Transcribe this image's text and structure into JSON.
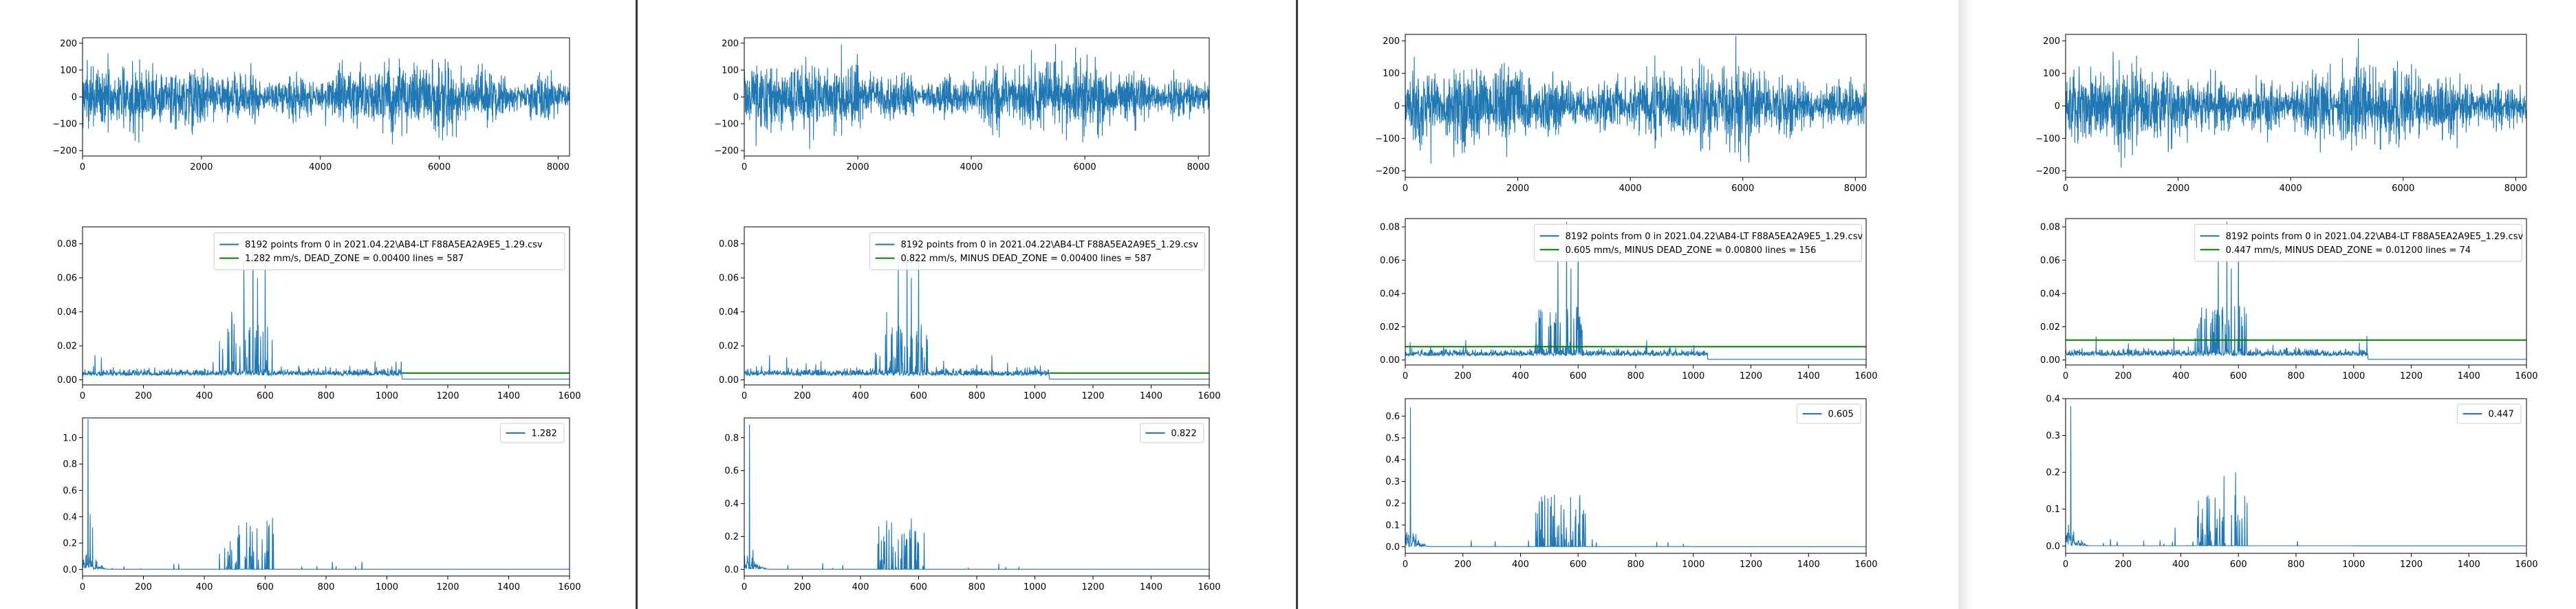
{
  "chart_data": [
    {
      "id": "window-1",
      "legend_time": "8192 points from 0  in  2021.04.22\\AB4-LT F88A5EA2A9E5_1.29.csv",
      "legend_dead_zone": "1.282 mm/s,  DEAD_ZONE = 0.00400     lines = 587",
      "legend_spectrum": "1.282",
      "charts": [
        {
          "type": "line",
          "role": "waveform",
          "n_points": 8192,
          "xlim": [
            0,
            8192
          ],
          "ylim": [
            -220,
            220
          ],
          "xticks": [
            0,
            2000,
            4000,
            6000,
            8000
          ],
          "yticks": [
            -200,
            -100,
            0,
            100,
            200
          ],
          "amplitude": 160,
          "peak": 215
        },
        {
          "type": "line",
          "role": "spectrum-deadzone",
          "n_points": 1600,
          "xlim": [
            0,
            1600
          ],
          "ylim": [
            -0.003,
            0.09
          ],
          "xticks": [
            0,
            200,
            400,
            600,
            800,
            1000,
            1200,
            1400,
            1600
          ],
          "yticks": [
            0.0,
            0.02,
            0.04,
            0.06,
            0.08
          ],
          "dead_zone": 0.004,
          "dead_zone_from": 1050,
          "peaks": [
            {
              "x": 560,
              "y": 0.085
            },
            {
              "x": 600,
              "y": 0.08
            },
            {
              "x": 530,
              "y": 0.07
            },
            {
              "x": 575,
              "y": 0.06
            },
            {
              "x": 490,
              "y": 0.04
            }
          ]
        },
        {
          "type": "line",
          "role": "spectrum-filtered",
          "n_points": 1600,
          "xlim": [
            0,
            1600
          ],
          "ylim": [
            -0.05,
            1.15
          ],
          "xticks": [
            0,
            200,
            400,
            600,
            800,
            1000,
            1200,
            1400,
            1600
          ],
          "yticks": [
            0.0,
            0.2,
            0.4,
            0.6,
            0.8,
            1.0
          ],
          "peaks": [
            {
              "x": 18,
              "y": 1.14
            },
            {
              "x": 25,
              "y": 0.42
            },
            {
              "x": 33,
              "y": 0.32
            },
            {
              "x": 550,
              "y": 0.22
            },
            {
              "x": 590,
              "y": 0.23
            }
          ]
        }
      ]
    },
    {
      "id": "window-2",
      "legend_time": "8192 points from 0  in  2021.04.22\\AB4-LT F88A5EA2A9E5_1.29.csv",
      "legend_dead_zone": "0.822 mm/s,  MINUS  DEAD_ZONE = 0.00400     lines = 587",
      "legend_spectrum": "0.822",
      "charts": [
        {
          "type": "line",
          "role": "waveform",
          "n_points": 8192,
          "xlim": [
            0,
            8192
          ],
          "ylim": [
            -220,
            220
          ],
          "xticks": [
            0,
            2000,
            4000,
            6000,
            8000
          ],
          "yticks": [
            -200,
            -100,
            0,
            100,
            200
          ],
          "amplitude": 160,
          "peak": 215
        },
        {
          "type": "line",
          "role": "spectrum-deadzone",
          "n_points": 1600,
          "xlim": [
            0,
            1600
          ],
          "ylim": [
            -0.003,
            0.09
          ],
          "xticks": [
            0,
            200,
            400,
            600,
            800,
            1000,
            1200,
            1400,
            1600
          ],
          "yticks": [
            0.0,
            0.02,
            0.04,
            0.06,
            0.08
          ],
          "dead_zone": 0.004,
          "dead_zone_from": 1050,
          "peaks": [
            {
              "x": 560,
              "y": 0.085
            },
            {
              "x": 600,
              "y": 0.08
            },
            {
              "x": 530,
              "y": 0.07
            },
            {
              "x": 575,
              "y": 0.06
            },
            {
              "x": 490,
              "y": 0.04
            }
          ]
        },
        {
          "type": "line",
          "role": "spectrum-filtered",
          "n_points": 1600,
          "xlim": [
            0,
            1600
          ],
          "ylim": [
            -0.04,
            0.92
          ],
          "xticks": [
            0,
            200,
            400,
            600,
            800,
            1000,
            1200,
            1400,
            1600
          ],
          "yticks": [
            0.0,
            0.2,
            0.4,
            0.6,
            0.8
          ],
          "peaks": [
            {
              "x": 18,
              "y": 0.88
            },
            {
              "x": 30,
              "y": 0.12
            },
            {
              "x": 550,
              "y": 0.22
            },
            {
              "x": 590,
              "y": 0.23
            }
          ]
        }
      ]
    },
    {
      "id": "window-3",
      "legend_time": "8192 points from 0  in  2021.04.22\\AB4-LT F88A5EA2A9E5_1.29.csv",
      "legend_dead_zone": "0.605 mm/s,  MINUS  DEAD_ZONE = 0.00800     lines = 156",
      "legend_spectrum": "0.605",
      "charts": [
        {
          "type": "line",
          "role": "waveform",
          "n_points": 8192,
          "xlim": [
            0,
            8192
          ],
          "ylim": [
            -220,
            220
          ],
          "xticks": [
            0,
            2000,
            4000,
            6000,
            8000
          ],
          "yticks": [
            -200,
            -100,
            0,
            100,
            200
          ],
          "amplitude": 160,
          "peak": 215
        },
        {
          "type": "line",
          "role": "spectrum-deadzone",
          "n_points": 1600,
          "xlim": [
            0,
            1600
          ],
          "ylim": [
            -0.003,
            0.085
          ],
          "xticks": [
            0,
            200,
            400,
            600,
            800,
            1000,
            1200,
            1400,
            1600
          ],
          "yticks": [
            0.0,
            0.02,
            0.04,
            0.06,
            0.08
          ],
          "dead_zone": 0.008,
          "dead_zone_from": 0,
          "peaks": [
            {
              "x": 560,
              "y": 0.083
            },
            {
              "x": 600,
              "y": 0.078
            },
            {
              "x": 530,
              "y": 0.066
            },
            {
              "x": 575,
              "y": 0.055
            }
          ]
        },
        {
          "type": "line",
          "role": "spectrum-filtered",
          "n_points": 1600,
          "xlim": [
            0,
            1600
          ],
          "ylim": [
            -0.03,
            0.68
          ],
          "xticks": [
            0,
            200,
            400,
            600,
            800,
            1000,
            1200,
            1400,
            1600
          ],
          "yticks": [
            0.0,
            0.1,
            0.2,
            0.3,
            0.4,
            0.5,
            0.6
          ],
          "peaks": [
            {
              "x": 18,
              "y": 0.64
            },
            {
              "x": 550,
              "y": 0.13
            },
            {
              "x": 590,
              "y": 0.14
            },
            {
              "x": 470,
              "y": 0.08
            }
          ]
        }
      ]
    },
    {
      "id": "window-4",
      "legend_time": "8192 points from 0  in  2021.04.22\\AB4-LT F88A5EA2A9E5_1.29.csv",
      "legend_dead_zone": "0.447 mm/s,  MINUS  DEAD_ZONE = 0.01200     lines = 74",
      "legend_spectrum": "0.447",
      "charts": [
        {
          "type": "line",
          "role": "waveform",
          "n_points": 8192,
          "xlim": [
            0,
            8192
          ],
          "ylim": [
            -220,
            220
          ],
          "xticks": [
            0,
            2000,
            4000,
            6000,
            8000
          ],
          "yticks": [
            -200,
            -100,
            0,
            100,
            200
          ],
          "amplitude": 160,
          "peak": 215
        },
        {
          "type": "line",
          "role": "spectrum-deadzone",
          "n_points": 1600,
          "xlim": [
            0,
            1600
          ],
          "ylim": [
            -0.003,
            0.085
          ],
          "xticks": [
            0,
            200,
            400,
            600,
            800,
            1000,
            1200,
            1400,
            1600
          ],
          "yticks": [
            0.0,
            0.02,
            0.04,
            0.06,
            0.08
          ],
          "dead_zone": 0.012,
          "dead_zone_from": 0,
          "peaks": [
            {
              "x": 560,
              "y": 0.083
            },
            {
              "x": 600,
              "y": 0.078
            },
            {
              "x": 530,
              "y": 0.066
            },
            {
              "x": 575,
              "y": 0.055
            }
          ]
        },
        {
          "type": "line",
          "role": "spectrum-filtered",
          "n_points": 1600,
          "xlim": [
            0,
            1600
          ],
          "ylim": [
            -0.02,
            0.4
          ],
          "xticks": [
            0,
            200,
            400,
            600,
            800,
            1000,
            1200,
            1400,
            1600
          ],
          "yticks": [
            0.0,
            0.1,
            0.2,
            0.3,
            0.4
          ],
          "peaks": [
            {
              "x": 18,
              "y": 0.38
            },
            {
              "x": 550,
              "y": 0.19
            },
            {
              "x": 590,
              "y": 0.2
            },
            {
              "x": 380,
              "y": 0.05
            }
          ]
        }
      ]
    }
  ],
  "colors": {
    "series": "#1f77b4",
    "dead_zone": "#008000",
    "axes": "#000000",
    "background": "#ffffff"
  }
}
